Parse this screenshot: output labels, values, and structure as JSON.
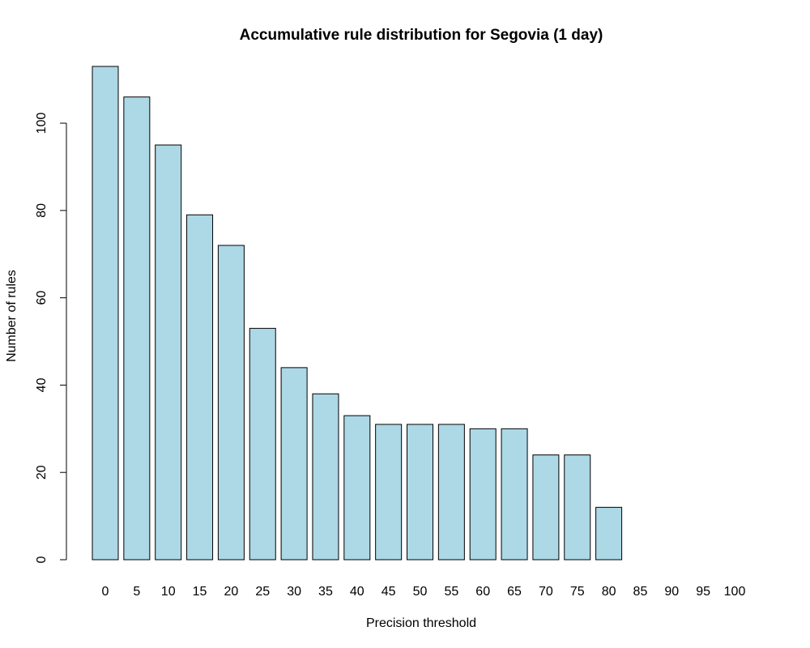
{
  "chart_data": {
    "type": "bar",
    "title": "Accumulative rule distribution for Segovia (1 day)",
    "xlabel": "Precision threshold",
    "ylabel": "Number of rules",
    "categories": [
      "0",
      "5",
      "10",
      "15",
      "20",
      "25",
      "30",
      "35",
      "40",
      "45",
      "50",
      "55",
      "60",
      "65",
      "70",
      "75",
      "80",
      "85",
      "90",
      "95",
      "100"
    ],
    "values": [
      113,
      106,
      95,
      79,
      72,
      53,
      44,
      38,
      33,
      31,
      31,
      31,
      30,
      30,
      24,
      24,
      12,
      0,
      0,
      0,
      0
    ],
    "ylim": [
      0,
      113
    ],
    "yticks": [
      0,
      20,
      40,
      60,
      80,
      100
    ],
    "grid": false,
    "legend": "none",
    "bar_color": "#add8e6"
  }
}
